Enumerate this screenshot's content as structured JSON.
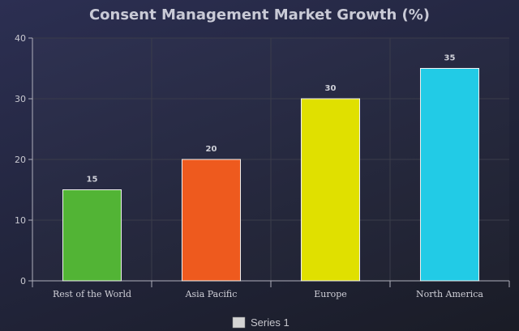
{
  "chart_data": {
    "type": "bar",
    "title": "Consent Management Market Growth (%)",
    "categories": [
      "Rest of the World",
      "Asia Pacific",
      "Europe",
      "North America"
    ],
    "series": [
      {
        "name": "Series 1",
        "values": [
          15,
          20,
          30,
          35
        ],
        "colors": [
          "#52b435",
          "#ee5a1e",
          "#e0e000",
          "#22cbe6"
        ]
      }
    ],
    "yticks": [
      0,
      10,
      20,
      30,
      40
    ],
    "ylim": [
      0,
      40
    ],
    "grid": true,
    "legend_position": "bottom-center",
    "legend_swatch_color": "#d4d4d4",
    "xlabel": "",
    "ylabel": ""
  }
}
